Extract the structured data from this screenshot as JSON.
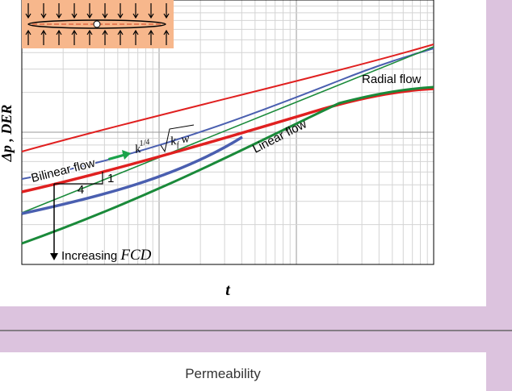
{
  "figure": {
    "y_axis_label": "Δp , DER",
    "x_axis_label": "t",
    "annotations": {
      "radial_flow": "Radial flow",
      "linear_flow": "Linear flow",
      "bilinear_flow": "Bilinear flow",
      "increasing": "Increasing",
      "fcd": "FCD",
      "slope_run": "4",
      "slope_rise": "1",
      "k": "k",
      "k_exp": "1/4",
      "kf_k": "k",
      "kf_f": "f",
      "kf_w": "w"
    }
  },
  "section": {
    "title": "Permeability"
  }
}
